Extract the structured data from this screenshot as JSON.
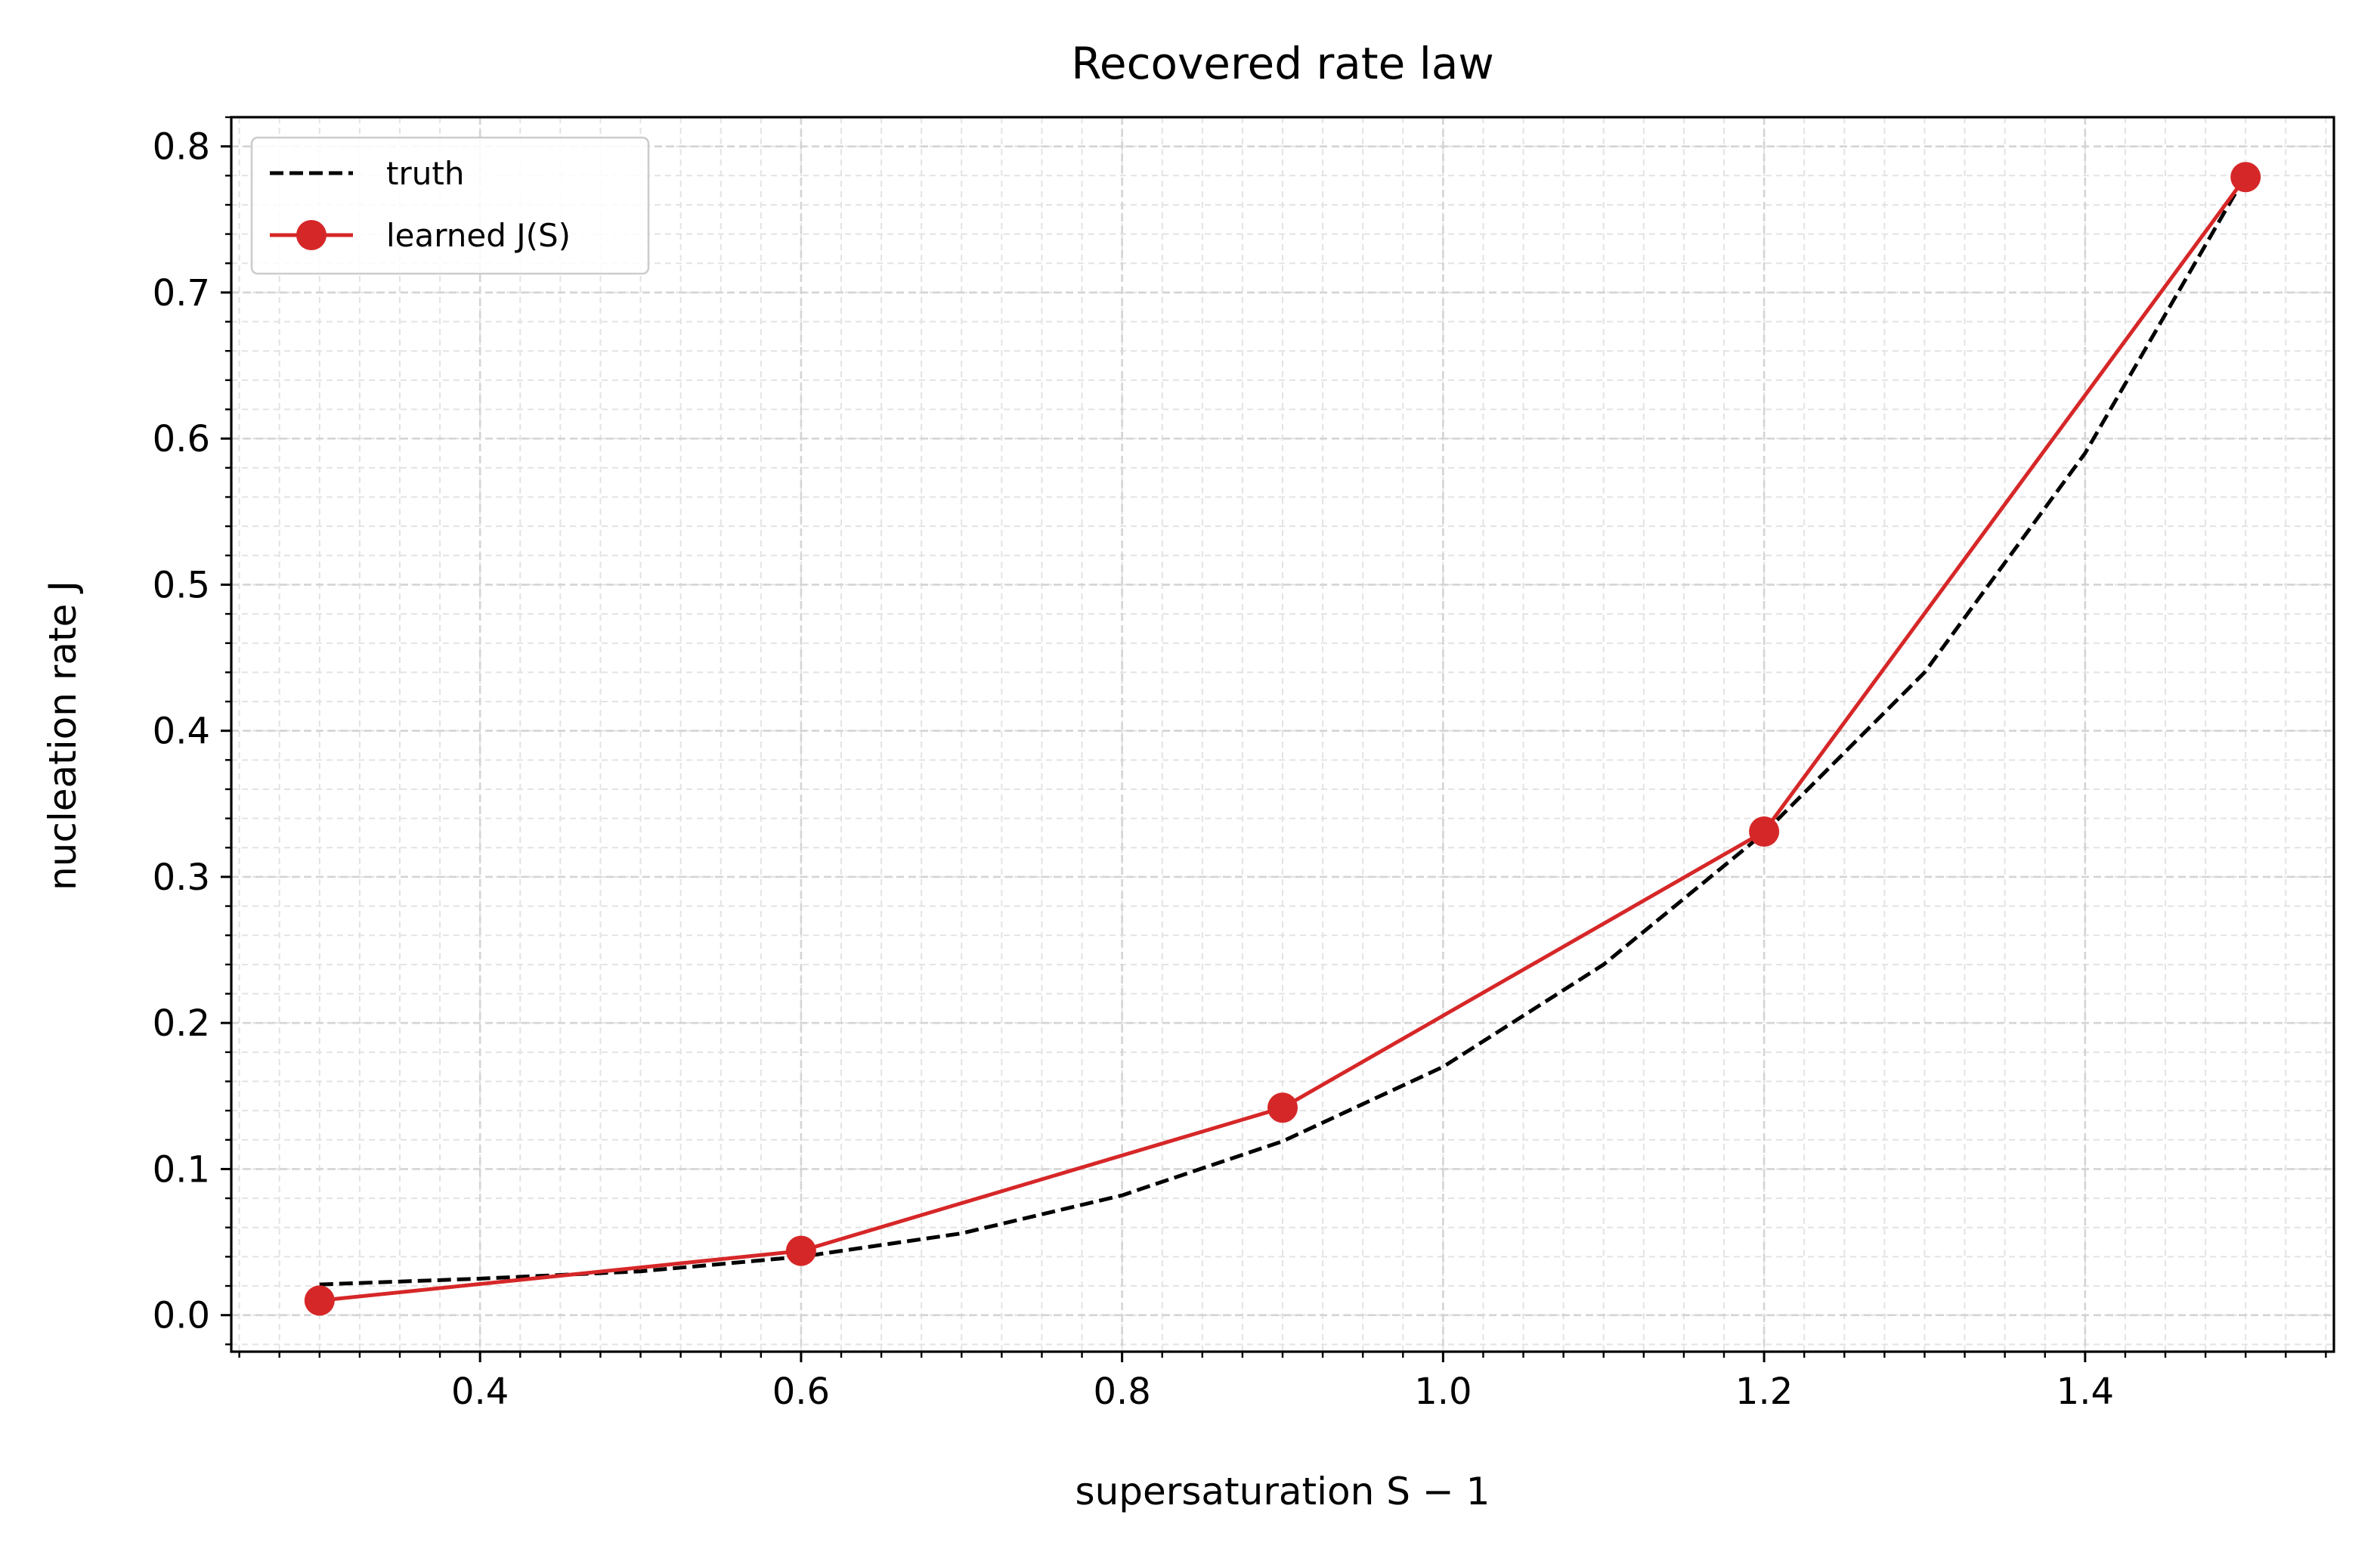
{
  "chart_data": {
    "type": "line",
    "title": "Recovered rate law",
    "xlabel": "supersaturation  S − 1",
    "ylabel": "nucleation rate  J",
    "xlim": [
      0.245,
      1.555
    ],
    "ylim": [
      -0.025,
      0.82
    ],
    "xticks": [
      0.4,
      0.6,
      0.8,
      1.0,
      1.2,
      1.4
    ],
    "xtick_labels": [
      "0.4",
      "0.6",
      "0.8",
      "1.0",
      "1.2",
      "1.4"
    ],
    "yticks": [
      0.0,
      0.1,
      0.2,
      0.3,
      0.4,
      0.5,
      0.6,
      0.7,
      0.8
    ],
    "ytick_labels": [
      "0.0",
      "0.1",
      "0.2",
      "0.3",
      "0.4",
      "0.5",
      "0.6",
      "0.7",
      "0.8"
    ],
    "grid": true,
    "legend": "top-left",
    "series": [
      {
        "name": "truth",
        "style": "dashed",
        "color": "#000000",
        "x": [
          0.3,
          0.4,
          0.5,
          0.6,
          0.7,
          0.8,
          0.9,
          1.0,
          1.1,
          1.2,
          1.3,
          1.4,
          1.5
        ],
        "y": [
          0.021,
          0.025,
          0.03,
          0.04,
          0.056,
          0.082,
          0.119,
          0.17,
          0.24,
          0.33,
          0.44,
          0.59,
          0.78
        ]
      },
      {
        "name": "learned J(S)",
        "style": "solid",
        "marker": "circle",
        "color": "#d62728",
        "x": [
          0.3,
          0.6,
          0.9,
          1.2,
          1.5
        ],
        "y": [
          0.01,
          0.044,
          0.142,
          0.331,
          0.779
        ]
      }
    ]
  }
}
